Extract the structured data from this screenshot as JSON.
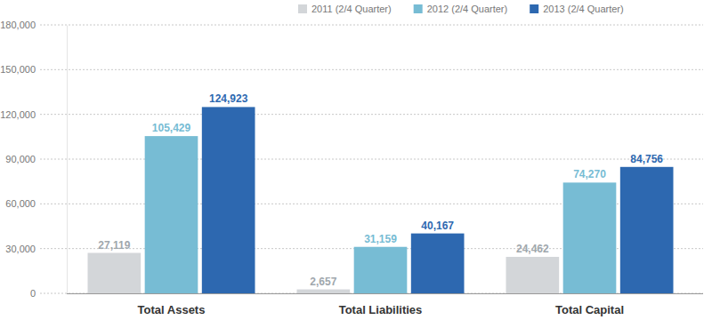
{
  "chart_data": {
    "type": "bar",
    "categories": [
      "Total Assets",
      "Total Liabilities",
      "Total Capital"
    ],
    "series": [
      {
        "name": "2011 (2/4 Quarter)",
        "color": "#d3d6d9",
        "values": [
          27119,
          2657,
          24462
        ],
        "value_labels": [
          "27,119",
          "2,657",
          "24,462"
        ]
      },
      {
        "name": "2012 (2/4 Quarter)",
        "color": "#77bcd4",
        "values": [
          105429,
          31159,
          74270
        ],
        "value_labels": [
          "105,429",
          "31,159",
          "74,270"
        ]
      },
      {
        "name": "2013 (2/4 Quarter)",
        "color": "#2d68b0",
        "values": [
          124923,
          40167,
          84756
        ],
        "value_labels": [
          "124,923",
          "40,167",
          "84,756"
        ]
      }
    ],
    "ylim": [
      0,
      180000
    ],
    "yticks": [
      0,
      {
        "value": 30000,
        "label": "30,000"
      },
      {
        "value": 60000,
        "label": "60,000"
      },
      {
        "value": 90000,
        "label": "90,000"
      },
      {
        "value": 120000,
        "label": "120,000"
      },
      {
        "value": 150000,
        "label": "150,000"
      },
      {
        "value": 180000,
        "label": "180,000"
      }
    ],
    "grid": true,
    "data_labels": true,
    "legend": "top"
  }
}
